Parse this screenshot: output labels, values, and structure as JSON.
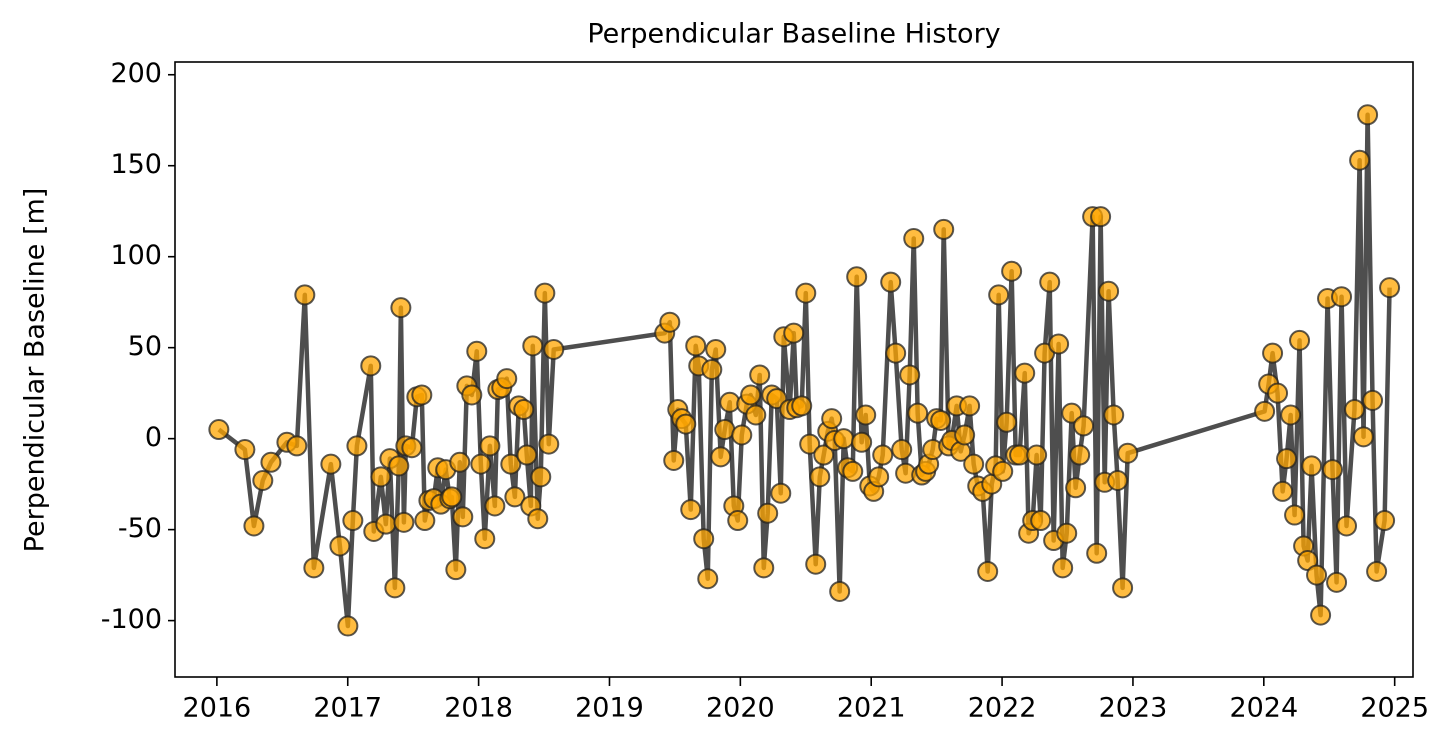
{
  "chart_data": {
    "type": "line",
    "title": "Perpendicular Baseline History",
    "y_label": "Perpendicular Baseline [m]",
    "xlim": [
      2015.68,
      2025.14
    ],
    "ylim": [
      -131,
      207
    ],
    "xticks": [
      2016,
      2017,
      2018,
      2019,
      2020,
      2021,
      2022,
      2023,
      2024,
      2025
    ],
    "yticks": [
      -100,
      -50,
      0,
      50,
      100,
      150,
      200
    ],
    "grid": false,
    "x": [
      2016.015,
      2016.214,
      2016.283,
      2016.351,
      2016.413,
      2016.535,
      2016.611,
      2016.672,
      2016.741,
      2016.871,
      2016.94,
      2017.001,
      2017.039,
      2017.07,
      2017.176,
      2017.199,
      2017.253,
      2017.291,
      2017.322,
      2017.36,
      2017.39,
      2017.406,
      2017.429,
      2017.444,
      2017.49,
      2017.528,
      2017.566,
      2017.589,
      2017.62,
      2017.658,
      2017.688,
      2017.711,
      2017.749,
      2017.78,
      2017.795,
      2017.826,
      2017.856,
      2017.879,
      2017.91,
      2017.948,
      2017.986,
      2018.017,
      2018.047,
      2018.086,
      2018.124,
      2018.147,
      2018.177,
      2018.215,
      2018.246,
      2018.277,
      2018.307,
      2018.345,
      2018.368,
      2018.399,
      2018.414,
      2018.452,
      2018.475,
      2018.506,
      2018.536,
      2018.574,
      2019.422,
      2019.461,
      2019.491,
      2019.522,
      2019.552,
      2019.583,
      2019.621,
      2019.659,
      2019.682,
      2019.72,
      2019.751,
      2019.782,
      2019.812,
      2019.85,
      2019.881,
      2019.919,
      2019.95,
      2019.98,
      2020.011,
      2020.049,
      2020.079,
      2020.118,
      2020.148,
      2020.179,
      2020.209,
      2020.24,
      2020.278,
      2020.309,
      2020.332,
      2020.377,
      2020.408,
      2020.431,
      2020.469,
      2020.5,
      2020.53,
      2020.576,
      2020.607,
      2020.637,
      2020.668,
      2020.698,
      2020.721,
      2020.759,
      2020.79,
      2020.82,
      2020.859,
      2020.889,
      2020.927,
      2020.958,
      2020.989,
      2021.019,
      2021.057,
      2021.088,
      2021.149,
      2021.187,
      2021.233,
      2021.263,
      2021.294,
      2021.325,
      2021.355,
      2021.386,
      2021.416,
      2021.439,
      2021.47,
      2021.5,
      2021.531,
      2021.554,
      2021.592,
      2021.615,
      2021.653,
      2021.684,
      2021.714,
      2021.752,
      2021.783,
      2021.814,
      2021.852,
      2021.89,
      2021.921,
      2021.951,
      2021.974,
      2022.005,
      2022.035,
      2022.073,
      2022.104,
      2022.134,
      2022.173,
      2022.203,
      2022.234,
      2022.264,
      2022.295,
      2022.325,
      2022.364,
      2022.394,
      2022.432,
      2022.463,
      2022.494,
      2022.532,
      2022.562,
      2022.593,
      2022.623,
      2022.692,
      2022.723,
      2022.753,
      2022.784,
      2022.814,
      2022.853,
      2022.883,
      2022.921,
      2022.96,
      2024.006,
      2024.037,
      2024.067,
      2024.105,
      2024.144,
      2024.174,
      2024.205,
      2024.235,
      2024.273,
      2024.304,
      2024.335,
      2024.365,
      2024.403,
      2024.434,
      2024.487,
      2024.525,
      2024.556,
      2024.594,
      2024.632,
      2024.693,
      2024.732,
      2024.762,
      2024.793,
      2024.831,
      2024.862,
      2024.923,
      2024.961
    ],
    "series": [
      {
        "color": "#ffa500",
        "line_color": "#444444",
        "values": [
          5,
          -6,
          -48,
          -23,
          -13,
          -2,
          -4,
          79,
          -71,
          -14,
          -59,
          -103,
          -45,
          -4,
          40,
          -51,
          -21,
          -47,
          -11,
          -82,
          -15,
          72,
          -46,
          -4,
          -5,
          23,
          24,
          -45,
          -34,
          -33,
          -16,
          -36,
          -17,
          -33,
          -32,
          -72,
          -13,
          -43,
          29,
          24,
          48,
          -14,
          -55,
          -4,
          -37,
          27,
          28,
          33,
          -14,
          -32,
          18,
          16,
          -9,
          -37,
          51,
          -44,
          -21,
          80,
          -3,
          49,
          58,
          64,
          -12,
          16,
          11,
          8,
          -39,
          51,
          40,
          -55,
          -77,
          38,
          49,
          -10,
          5,
          20,
          -37,
          -45,
          2,
          19,
          24,
          13,
          35,
          -71,
          -41,
          24,
          22,
          -30,
          56,
          16,
          58,
          17,
          18,
          80,
          -3,
          -69,
          -21,
          -9,
          4,
          11,
          -1,
          -84,
          0,
          -16,
          -18,
          89,
          -2,
          13,
          -26,
          -29,
          -21,
          -9,
          86,
          47,
          -6,
          -19,
          35,
          110,
          14,
          -20,
          -18,
          -14,
          -6,
          11,
          10,
          115,
          -4,
          -1,
          18,
          -7,
          2,
          18,
          -14,
          -26,
          -29,
          -73,
          -25,
          -15,
          79,
          -18,
          9,
          92,
          -9,
          -9,
          36,
          -52,
          -45,
          -9,
          -45,
          47,
          86,
          -56,
          52,
          -71,
          -52,
          14,
          -27,
          -9,
          7,
          122,
          -63,
          122,
          -24,
          81,
          13,
          -23,
          -82,
          -8,
          15,
          30,
          47,
          25,
          -29,
          -11,
          13,
          -42,
          54,
          -59,
          -67,
          -15,
          -75,
          -97,
          77,
          -17,
          -79,
          78,
          -48,
          16,
          153,
          1,
          178,
          21,
          -73,
          -45,
          83
        ]
      }
    ]
  }
}
